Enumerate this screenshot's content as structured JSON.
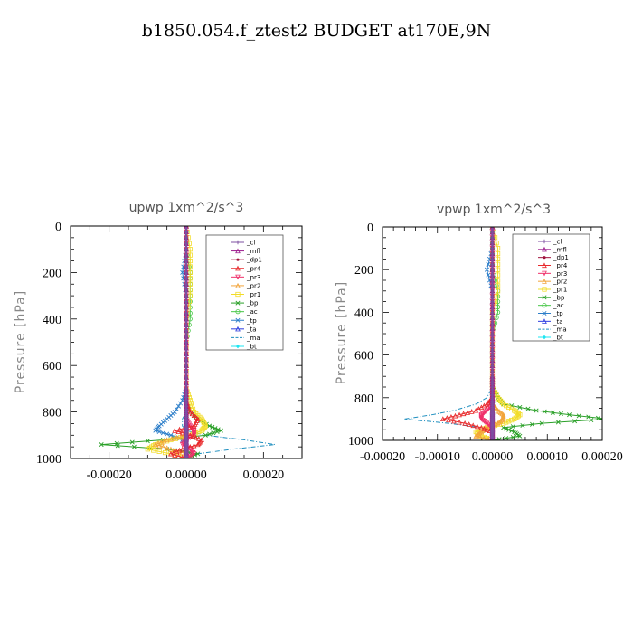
{
  "title": "b1850.054.f_ztest2  BUDGET at170E,9N",
  "colors": {
    "_cl": "#7d4fa0",
    "_mfl": "#9b1a8c",
    "_dp1": "#a0133d",
    "_pr4": "#e8292b",
    "_pr3": "#ef2f6a",
    "_pr2": "#f2a43a",
    "_pr1": "#f2dc28",
    "_bp": "#2aa028",
    "_ac": "#48c748",
    "_tp": "#2c7ec9",
    "_ta": "#2b3be0",
    "_ma": "#1f8fbf",
    "_bt": "#1ee6f2"
  },
  "chart_data": [
    {
      "type": "line",
      "title": "upwp   1xm^2/s^3",
      "ylabel": "Pressure [hPa]",
      "xlim": [
        -0.0003,
        0.0003
      ],
      "ylim": [
        1000,
        0
      ],
      "xticks": [
        "-0.00020",
        "0.00000",
        "0.00020"
      ],
      "xtick_values": [
        -0.0002,
        0,
        0.0002
      ],
      "yticks": [
        "0",
        "200",
        "400",
        "600",
        "800",
        "1000"
      ],
      "ytick_values": [
        0,
        200,
        400,
        600,
        800,
        1000
      ],
      "legend_position": "top-right",
      "pressure": [
        0,
        100,
        200,
        300,
        400,
        500,
        600,
        700,
        750,
        800,
        830,
        860,
        880,
        900,
        920,
        940,
        960,
        980,
        1000
      ],
      "series": [
        {
          "name": "_cl",
          "values": [
            0,
            0,
            0,
            0,
            0,
            0,
            0,
            0,
            0,
            0,
            0,
            0,
            0,
            0,
            0,
            0,
            0,
            0,
            0
          ]
        },
        {
          "name": "_mfl",
          "values": [
            0,
            0,
            0,
            0,
            0,
            0,
            0,
            0,
            0,
            0,
            0,
            0,
            0,
            0,
            0,
            0,
            0,
            0,
            0
          ]
        },
        {
          "name": "_dp1",
          "values": [
            0,
            0,
            0,
            0,
            0,
            0,
            0,
            0,
            0,
            0,
            0,
            0,
            0,
            0,
            0,
            0,
            0,
            0,
            0
          ]
        },
        {
          "name": "_pr4",
          "values": [
            0,
            0,
            0,
            0,
            0,
            0,
            0,
            0,
            0,
            1e-05,
            3e-05,
            2e-05,
            -3e-05,
            1e-05,
            4e-05,
            3e-05,
            -1e-05,
            -4e-05,
            0
          ]
        },
        {
          "name": "_pr3",
          "values": [
            0,
            0,
            0,
            0,
            0,
            0,
            0,
            0,
            0,
            0,
            0,
            1e-05,
            2e-05,
            2e-05,
            0,
            -1e-05,
            1e-05,
            2e-05,
            0
          ]
        },
        {
          "name": "_pr2",
          "values": [
            0,
            0,
            0,
            0,
            0,
            0,
            0,
            0,
            0,
            0,
            0,
            0,
            0,
            0,
            -5e-05,
            -8e-05,
            -4e-05,
            0,
            0
          ]
        },
        {
          "name": "_pr1",
          "values": [
            0,
            1e-05,
            1e-05,
            1e-05,
            0,
            0,
            0,
            0,
            1e-05,
            2e-05,
            4e-05,
            5e-05,
            4e-05,
            1e-05,
            -4e-05,
            -8e-05,
            -0.0001,
            -4e-05,
            0
          ]
        },
        {
          "name": "_bp",
          "values": [
            0,
            0,
            0,
            0,
            0,
            0,
            0,
            0,
            0,
            1e-05,
            3e-05,
            6e-05,
            9e-05,
            5e-05,
            -6e-05,
            -0.00022,
            -5e-05,
            3e-05,
            0
          ]
        },
        {
          "name": "_ac",
          "values": [
            0,
            0,
            1e-05,
            1e-05,
            1e-05,
            0,
            0,
            0,
            0,
            0,
            0,
            0,
            0,
            0,
            0,
            0,
            0,
            0,
            0
          ]
        },
        {
          "name": "_tp",
          "values": [
            0,
            0,
            -1e-05,
            0,
            0,
            0,
            0,
            0,
            -1e-05,
            -3e-05,
            -5e-05,
            -7e-05,
            -8e-05,
            -4e-05,
            -1e-05,
            0,
            0,
            0,
            0
          ]
        },
        {
          "name": "_ta",
          "values": [
            0,
            0,
            0,
            0,
            0,
            0,
            0,
            0,
            0,
            0,
            0,
            0,
            0,
            0,
            0,
            0,
            0,
            0,
            0
          ]
        },
        {
          "name": "_ma",
          "values": [
            0,
            0,
            0,
            0,
            0,
            0,
            0,
            0,
            0,
            0,
            -1e-05,
            -1e-05,
            0,
            5e-05,
            0.00015,
            0.00023,
            0.00012,
            3e-05,
            0
          ]
        },
        {
          "name": "_bt",
          "values": [
            0,
            0,
            0,
            0,
            0,
            0,
            0,
            0,
            0,
            0,
            0,
            0,
            0,
            0,
            0,
            0,
            0,
            0,
            0
          ]
        }
      ]
    },
    {
      "type": "line",
      "title": "vpwp   1xm^2/s^3",
      "ylabel": "Pressure [hPa]",
      "xlim": [
        -0.0002,
        0.0002
      ],
      "ylim": [
        1000,
        0
      ],
      "xticks": [
        "-0.00020",
        "-0.00010",
        "0.00000",
        "0.00010",
        "0.00020"
      ],
      "xtick_values": [
        -0.0002,
        -0.0001,
        0,
        0.0001,
        0.0002
      ],
      "yticks": [
        "0",
        "200",
        "400",
        "600",
        "800",
        "1000"
      ],
      "ytick_values": [
        0,
        200,
        400,
        600,
        800,
        1000
      ],
      "legend_position": "top-right",
      "pressure": [
        0,
        100,
        200,
        300,
        400,
        500,
        600,
        700,
        750,
        800,
        830,
        860,
        880,
        900,
        920,
        940,
        960,
        980,
        1000
      ],
      "series": [
        {
          "name": "_cl",
          "values": [
            0,
            0,
            0,
            0,
            0,
            0,
            0,
            0,
            0,
            0,
            0,
            0,
            0,
            0,
            0,
            0,
            0,
            0,
            0
          ]
        },
        {
          "name": "_mfl",
          "values": [
            0,
            0,
            0,
            0,
            0,
            0,
            0,
            0,
            0,
            0,
            0,
            0,
            0,
            0,
            0,
            0,
            0,
            0,
            0
          ]
        },
        {
          "name": "_dp1",
          "values": [
            0,
            0,
            0,
            0,
            0,
            0,
            0,
            0,
            0,
            0,
            0,
            0,
            0,
            0,
            0,
            0,
            0,
            0,
            0
          ]
        },
        {
          "name": "_pr4",
          "values": [
            0,
            0,
            0,
            0,
            0,
            0,
            0,
            0,
            0,
            0,
            -1e-05,
            -3e-05,
            -6e-05,
            -9e-05,
            -5e-05,
            -2e-05,
            0,
            0,
            0
          ]
        },
        {
          "name": "_pr3",
          "values": [
            0,
            0,
            0,
            0,
            0,
            0,
            0,
            0,
            0,
            0,
            0,
            -1e-05,
            -2e-05,
            -2e-05,
            -1e-05,
            0,
            0,
            0,
            0
          ]
        },
        {
          "name": "_pr2",
          "values": [
            0,
            0,
            0,
            0,
            0,
            0,
            0,
            0,
            0,
            0,
            0,
            1e-05,
            2e-05,
            2e-05,
            1e-05,
            -1e-05,
            -2e-05,
            -3e-05,
            0
          ]
        },
        {
          "name": "_pr1",
          "values": [
            0,
            1e-05,
            1e-05,
            1e-05,
            0,
            0,
            0,
            0,
            0,
            1e-05,
            2e-05,
            4e-05,
            5e-05,
            4e-05,
            2e-05,
            -1e-05,
            -3e-05,
            -2e-05,
            0
          ]
        },
        {
          "name": "_bp",
          "values": [
            0,
            0,
            0,
            0,
            0,
            0,
            0,
            0,
            0,
            1e-05,
            2e-05,
            8e-05,
            0.00014,
            0.00021,
            9e-05,
            2e-05,
            4e-05,
            5e-05,
            0
          ]
        },
        {
          "name": "_ac",
          "values": [
            0,
            0,
            0,
            1e-05,
            1e-05,
            0,
            0,
            0,
            0,
            0,
            0,
            0,
            0,
            0,
            0,
            0,
            0,
            0,
            0
          ]
        },
        {
          "name": "_tp",
          "values": [
            0,
            0,
            -1e-05,
            0,
            0,
            0,
            0,
            0,
            0,
            0,
            0,
            0,
            0,
            0,
            0,
            0,
            0,
            0,
            0
          ]
        },
        {
          "name": "_ta",
          "values": [
            0,
            0,
            0,
            0,
            0,
            0,
            0,
            0,
            0,
            0,
            0,
            0,
            0,
            0,
            0,
            0,
            0,
            0,
            0
          ]
        },
        {
          "name": "_ma",
          "values": [
            0,
            0,
            0,
            0,
            0,
            0,
            0,
            0,
            0,
            -1e-05,
            -3e-05,
            -7e-05,
            -0.00011,
            -0.00016,
            -8e-05,
            -2e-05,
            0,
            0,
            0
          ]
        },
        {
          "name": "_bt",
          "values": [
            0,
            0,
            0,
            0,
            0,
            0,
            0,
            0,
            0,
            0,
            0,
            0,
            0,
            0,
            0,
            0,
            0,
            0,
            0
          ]
        }
      ]
    }
  ]
}
